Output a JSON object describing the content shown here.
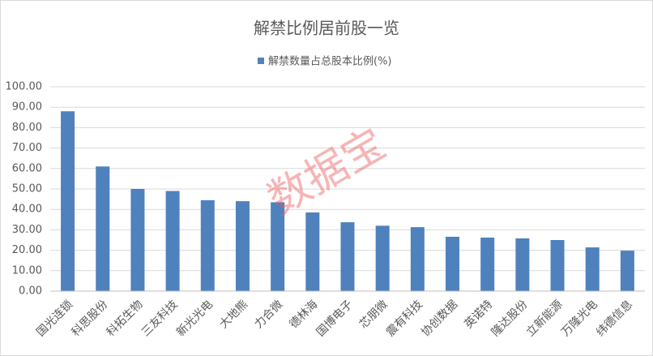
{
  "chart_data": {
    "type": "bar",
    "title": "解禁比例居前股一览",
    "watermark": "数据宝",
    "legend_position": "top",
    "series": [
      {
        "name": "解禁数量占总股本比例(%)",
        "color": "#4f81bd",
        "values": [
          88,
          61,
          50,
          49,
          44.5,
          44,
          43.5,
          38.5,
          33.7,
          32,
          31.3,
          26.6,
          26.2,
          25.8,
          25,
          21.4,
          19.8
        ]
      }
    ],
    "categories": [
      "国光连锁",
      "科思股份",
      "科拓生物",
      "三友科技",
      "新光光电",
      "大地熊",
      "力合微",
      "德林海",
      "国博电子",
      "芯朋微",
      "震有科技",
      "协创数据",
      "英诺特",
      "隆达股份",
      "立新能源",
      "万隆光电",
      "纬德信息"
    ],
    "ylim": [
      0,
      100
    ],
    "yticks": [
      {
        "value": 0,
        "label": "0.00"
      },
      {
        "value": 10,
        "label": "10.00"
      },
      {
        "value": 20,
        "label": "20.00"
      },
      {
        "value": 30,
        "label": "30.00"
      },
      {
        "value": 40,
        "label": "40.00"
      },
      {
        "value": 50,
        "label": "50.00"
      },
      {
        "value": 60,
        "label": "60.00"
      },
      {
        "value": 70,
        "label": "70.00"
      },
      {
        "value": 80,
        "label": "80.00"
      },
      {
        "value": 90,
        "label": "90.00"
      },
      {
        "value": 100,
        "label": "100.00"
      }
    ],
    "grid": true
  }
}
